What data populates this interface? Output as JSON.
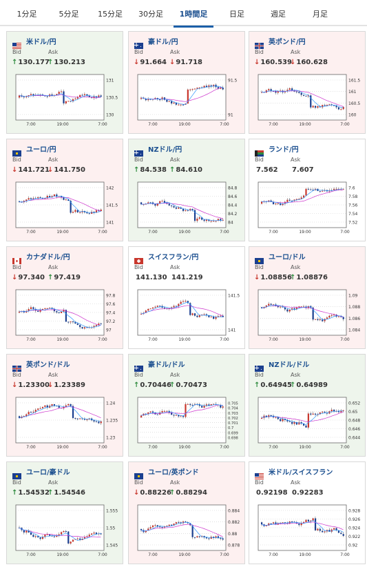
{
  "tabs": [
    "1分足",
    "5分足",
    "15分足",
    "30分足",
    "1時間足",
    "日足",
    "週足",
    "月足"
  ],
  "active_tab": "1時間足",
  "labels": {
    "bid": "Bid",
    "ask": "Ask"
  },
  "colors": {
    "up_bg": "#eef5ec",
    "down_bg": "#fdf0f0",
    "up_arrow": "#2e8b3e",
    "down_arrow": "#c8372d",
    "title": "#1b4f8f",
    "active_tab": "#1b5fa8",
    "ma_line": "#cc33cc",
    "short_ma_line": "#3399ff",
    "bull_candle": "#c8372d",
    "bear_candle": "#1b3f8f"
  },
  "arrows": {
    "up": "↑",
    "down": "↓"
  },
  "pairs": [
    {
      "name": "米ドル/円",
      "flag": "us-jp-flag-icon",
      "trend": "up",
      "bid": "130.177",
      "ask": "130.213",
      "bid_dir": "up",
      "ask_dir": "up",
      "yticks": [
        "131",
        "130.5",
        "130"
      ],
      "xticks": [
        "7:00",
        "19:00",
        "7:00"
      ]
    },
    {
      "name": "豪ドル/円",
      "flag": "au-jp-flag-icon",
      "trend": "down",
      "bid": "91.664",
      "ask": "91.718",
      "bid_dir": "down",
      "ask_dir": "down",
      "yticks": [
        "91.5",
        "91"
      ],
      "xticks": [
        "7:00",
        "19:00",
        "7:00"
      ]
    },
    {
      "name": "英ポンド/円",
      "flag": "gb-jp-flag-icon",
      "trend": "down",
      "bid": "160.539",
      "ask": "160.628",
      "bid_dir": "down",
      "ask_dir": "down",
      "yticks": [
        "161.5",
        "161",
        "160.5",
        "160"
      ],
      "xticks": [
        "7:00",
        "19:00",
        "7:00"
      ]
    },
    {
      "name": "ユーロ/円",
      "flag": "eu-jp-flag-icon",
      "trend": "down",
      "bid": "141.721",
      "ask": "141.750",
      "bid_dir": "down",
      "ask_dir": "down",
      "yticks": [
        "142",
        "141.5",
        "141"
      ],
      "xticks": [
        "7:00",
        "19:00",
        "7:00"
      ]
    },
    {
      "name": "NZドル/円",
      "flag": "nz-jp-flag-icon",
      "trend": "up",
      "bid": "84.538",
      "ask": "84.610",
      "bid_dir": "up",
      "ask_dir": "up",
      "yticks": [
        "84.8",
        "84.6",
        "84.4",
        "84.2",
        "84"
      ],
      "xticks": [
        "7:00",
        "19:00",
        "7:00"
      ]
    },
    {
      "name": "ランド/円",
      "flag": "za-jp-flag-icon",
      "trend": "flat",
      "bid": "7.562",
      "ask": "7.607",
      "bid_dir": "none",
      "ask_dir": "none",
      "yticks": [
        "7.6",
        "7.58",
        "7.56",
        "7.54",
        "7.52"
      ],
      "xticks": [
        "7:00",
        "19:00",
        "7:00"
      ]
    },
    {
      "name": "カナダドル/円",
      "flag": "ca-jp-flag-icon",
      "trend": "down",
      "bid": "97.340",
      "ask": "97.419",
      "bid_dir": "down",
      "ask_dir": "up",
      "yticks": [
        "97.8",
        "97.6",
        "97.4",
        "97.2",
        "97"
      ],
      "xticks": [
        "7:00",
        "19:00",
        "7:00"
      ]
    },
    {
      "name": "スイスフラン/円",
      "flag": "ch-jp-flag-icon",
      "trend": "flat",
      "bid": "141.130",
      "ask": "141.219",
      "bid_dir": "none",
      "ask_dir": "none",
      "yticks": [
        "141.5",
        "141"
      ],
      "xticks": [
        "7:00",
        "19:00",
        "7:00"
      ]
    },
    {
      "name": "ユーロ/ドル",
      "flag": "eu-us-flag-icon",
      "trend": "down",
      "bid": "1.08856",
      "ask": "1.08876",
      "bid_dir": "down",
      "ask_dir": "up",
      "yticks": [
        "1.09",
        "1.088",
        "1.086",
        "1.084"
      ],
      "xticks": [
        "7:00",
        "19:00",
        "7:00"
      ]
    },
    {
      "name": "英ポンド/ドル",
      "flag": "gb-us-flag-icon",
      "trend": "down",
      "bid": "1.23300",
      "ask": "1.23389",
      "bid_dir": "down",
      "ask_dir": "down",
      "yticks": [
        "1.24",
        "1.235",
        "1.23"
      ],
      "xticks": [
        "7:00",
        "19:00",
        "7:00"
      ]
    },
    {
      "name": "豪ドル/ドル",
      "flag": "au-us-flag-icon",
      "trend": "up",
      "bid": "0.70446",
      "ask": "0.70473",
      "bid_dir": "up",
      "ask_dir": "up",
      "yticks": [
        "0.705",
        "0.704",
        "0.703",
        "0.702",
        "0.701",
        "0.7",
        "0.699",
        "0.698"
      ],
      "xticks": [
        "7:00",
        "19:00",
        "7:00"
      ]
    },
    {
      "name": "NZドル/ドル",
      "flag": "nz-us-flag-icon",
      "trend": "up",
      "bid": "0.64945",
      "ask": "0.64989",
      "bid_dir": "up",
      "ask_dir": "up",
      "yticks": [
        "0.652",
        "0.65",
        "0.648",
        "0.646",
        "0.644"
      ],
      "xticks": [
        "7:00",
        "19:00",
        "7:00"
      ]
    },
    {
      "name": "ユーロ/豪ドル",
      "flag": "eu-au-flag-icon",
      "trend": "up",
      "bid": "1.54532",
      "ask": "1.54546",
      "bid_dir": "up",
      "ask_dir": "up",
      "yticks": [
        "1.555",
        "1.55",
        "1.545"
      ],
      "xticks": [
        "7:00",
        "19:00",
        "7:00"
      ]
    },
    {
      "name": "ユーロ/英ポンド",
      "flag": "eu-gb-flag-icon",
      "trend": "down",
      "bid": "0.88226",
      "ask": "0.88294",
      "bid_dir": "down",
      "ask_dir": "up",
      "yticks": [
        "0.884",
        "0.882",
        "0.88",
        "0.878"
      ],
      "xticks": [
        "7:00",
        "19:00",
        "7:00"
      ]
    },
    {
      "name": "米ドル/スイスフラン",
      "flag": "us-ch-flag-icon",
      "trend": "flat",
      "bid": "0.92198",
      "ask": "0.92283",
      "bid_dir": "none",
      "ask_dir": "none",
      "yticks": [
        "0.928",
        "0.926",
        "0.924",
        "0.922",
        "0.92"
      ],
      "xticks": [
        "7:00",
        "19:00",
        "7:00"
      ]
    }
  ]
}
